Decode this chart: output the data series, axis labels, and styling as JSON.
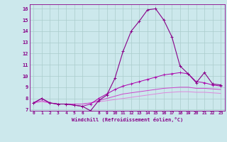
{
  "xlabel": "Windchill (Refroidissement éolien,°C)",
  "ylabel": "",
  "x": [
    0,
    1,
    2,
    3,
    4,
    5,
    6,
    7,
    8,
    9,
    10,
    11,
    12,
    13,
    14,
    15,
    16,
    17,
    18,
    19,
    20,
    21,
    22,
    23
  ],
  "line1": [
    7.6,
    8.0,
    7.6,
    7.5,
    7.5,
    7.4,
    7.3,
    6.9,
    7.8,
    8.3,
    9.8,
    12.2,
    14.0,
    14.9,
    15.9,
    16.0,
    15.0,
    13.5,
    10.9,
    10.2,
    9.4,
    10.3,
    9.3,
    9.2
  ],
  "line2": [
    7.6,
    8.0,
    7.6,
    7.5,
    7.5,
    7.4,
    7.3,
    7.5,
    8.0,
    8.4,
    8.8,
    9.1,
    9.3,
    9.5,
    9.7,
    9.9,
    10.1,
    10.2,
    10.3,
    10.2,
    9.5,
    9.4,
    9.2,
    9.1
  ],
  "line3": [
    7.6,
    7.8,
    7.6,
    7.5,
    7.5,
    7.5,
    7.5,
    7.6,
    7.8,
    8.0,
    8.2,
    8.4,
    8.5,
    8.6,
    8.7,
    8.8,
    8.9,
    8.95,
    9.0,
    9.0,
    8.9,
    8.9,
    8.85,
    8.8
  ],
  "line4": [
    7.6,
    7.7,
    7.6,
    7.5,
    7.5,
    7.5,
    7.5,
    7.6,
    7.7,
    7.8,
    7.9,
    8.0,
    8.1,
    8.2,
    8.3,
    8.4,
    8.5,
    8.55,
    8.6,
    8.6,
    8.55,
    8.55,
    8.5,
    8.45
  ],
  "line_color1": "#880088",
  "line_color2": "#aa00aa",
  "line_color3": "#cc44cc",
  "line_color4": "#dd88dd",
  "bg_color": "#cce8ec",
  "grid_color": "#aacccc",
  "tick_color": "#880088",
  "ylim": [
    6.9,
    16.4
  ],
  "xlim": [
    -0.5,
    23.5
  ],
  "yticks": [
    7,
    8,
    9,
    10,
    11,
    12,
    13,
    14,
    15,
    16
  ],
  "xticks": [
    0,
    1,
    2,
    3,
    4,
    5,
    6,
    8,
    9,
    10,
    11,
    12,
    13,
    14,
    15,
    16,
    17,
    18,
    19,
    20,
    21,
    22,
    23
  ]
}
